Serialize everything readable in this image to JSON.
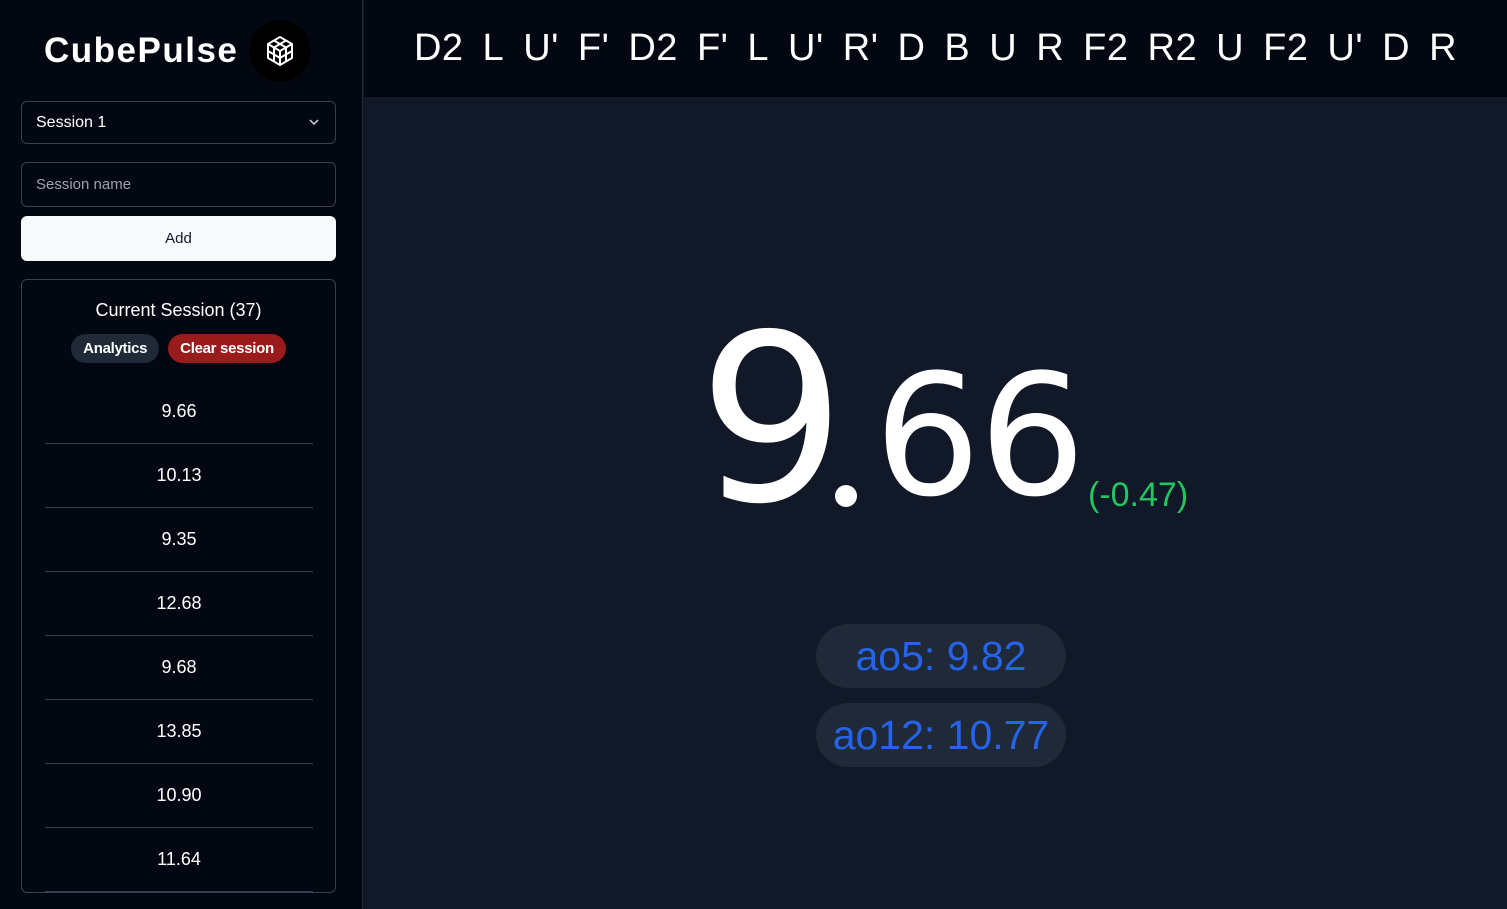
{
  "app": {
    "name": "CubePulse",
    "logo_icon": "cube-icon"
  },
  "sidebar": {
    "session_select": {
      "selected": "Session 1",
      "icon": "chevron-down-icon"
    },
    "session_name_input": {
      "placeholder": "Session name",
      "value": ""
    },
    "add_label": "Add",
    "current_session": {
      "title": "Current Session (37)",
      "analytics_label": "Analytics",
      "clear_label": "Clear session",
      "times": [
        "9.66",
        "10.13",
        "9.35",
        "12.68",
        "9.68",
        "13.85",
        "10.90",
        "11.64"
      ]
    }
  },
  "scramble": [
    "D2",
    "L",
    "U'",
    "F'",
    "D2",
    "F'",
    "L",
    "U'",
    "R'",
    "D",
    "B",
    "U",
    "R",
    "F2",
    "R2",
    "U",
    "F2",
    "U'",
    "D",
    "R"
  ],
  "timer": {
    "int_part": "9",
    "dec_part": "66",
    "delta": "(-0.47)"
  },
  "averages": {
    "ao5": "ao5: 9.82",
    "ao12": "ao12: 10.77"
  },
  "colors": {
    "background": "#111827",
    "sidebar": "#030712",
    "delta_green": "#22c55e",
    "average_blue": "#2563eb",
    "clear_red": "#991b1b"
  }
}
